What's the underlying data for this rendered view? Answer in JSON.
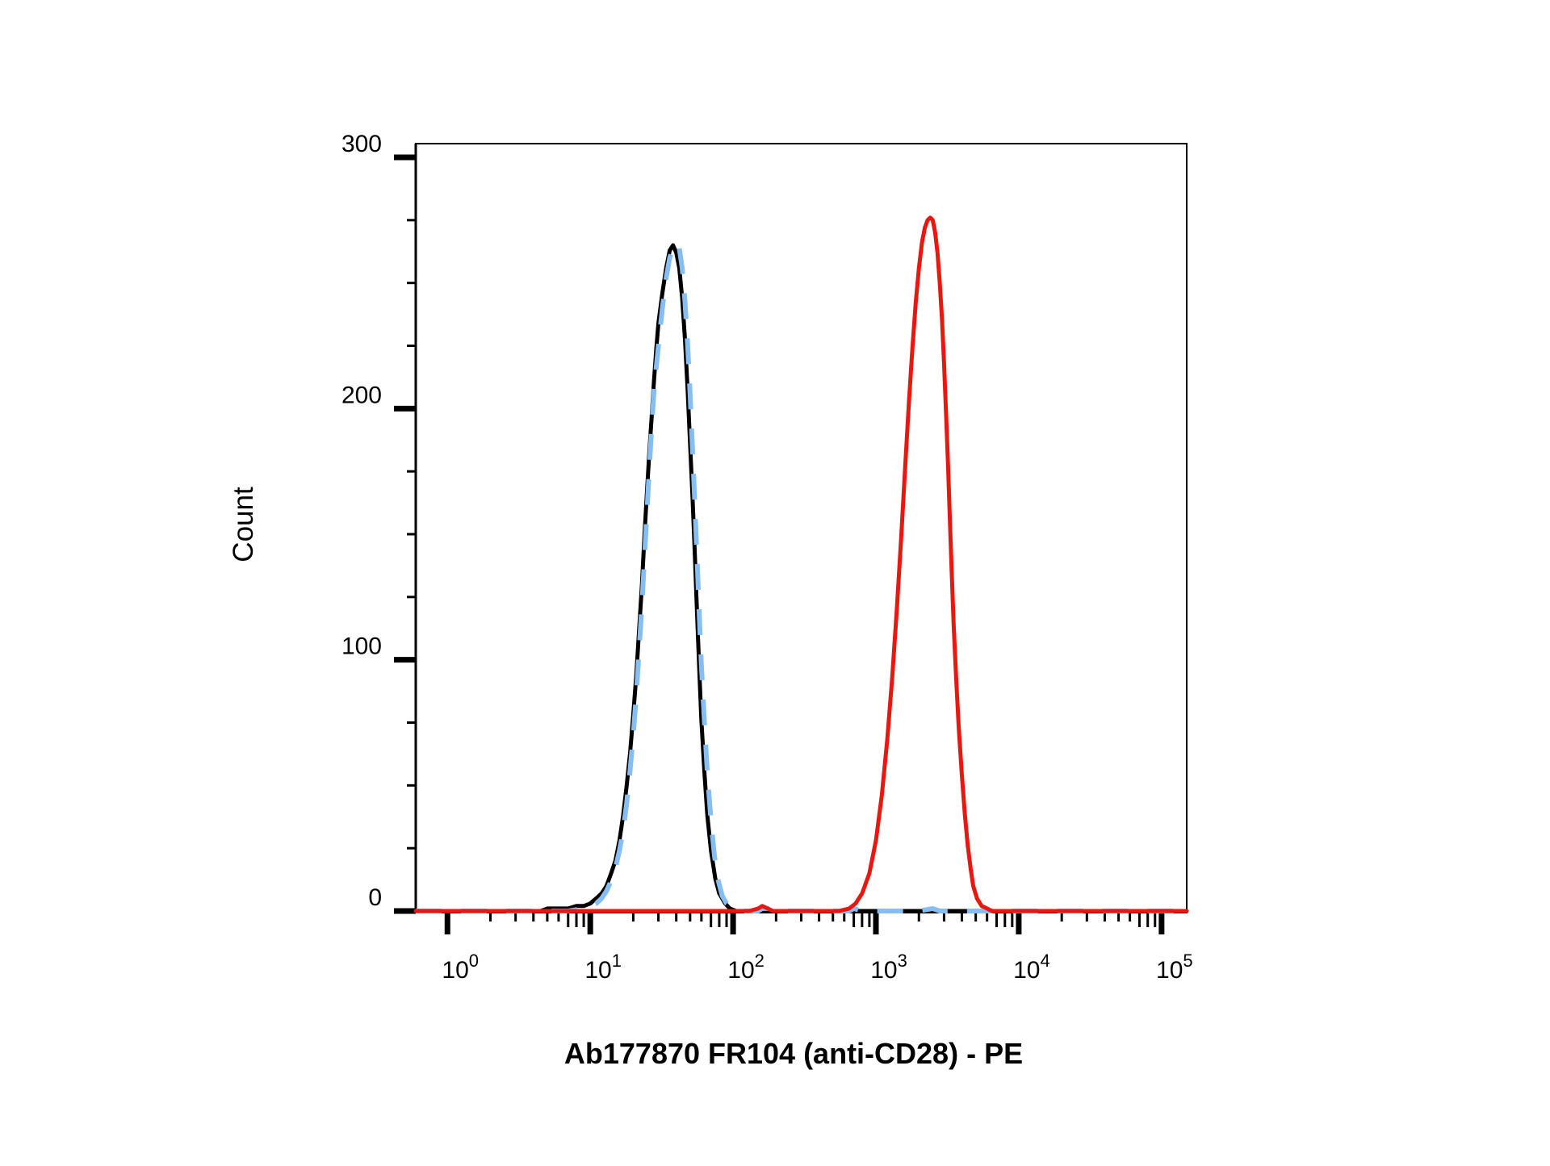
{
  "chart_data": {
    "type": "line",
    "title": "",
    "xlabel": "Ab177870 FR104 (anti-CD28) - PE",
    "ylabel": "Count",
    "x_scale": "log",
    "xlim": [
      0.6,
      150000
    ],
    "ylim": [
      0,
      300
    ],
    "x_ticks": [
      {
        "value": 1,
        "base": "10",
        "exp": "0"
      },
      {
        "value": 10,
        "base": "10",
        "exp": "1"
      },
      {
        "value": 100,
        "base": "10",
        "exp": "2"
      },
      {
        "value": 1000,
        "base": "10",
        "exp": "3"
      },
      {
        "value": 10000,
        "base": "10",
        "exp": "4"
      },
      {
        "value": 100000,
        "base": "10",
        "exp": "5"
      }
    ],
    "y_ticks": [
      {
        "value": 0,
        "label": "0"
      },
      {
        "value": 100,
        "label": "100"
      },
      {
        "value": 200,
        "label": "200"
      },
      {
        "value": 300,
        "label": "300"
      }
    ],
    "grid": false,
    "legend": "none",
    "series": [
      {
        "color": "#000000",
        "style": "solid",
        "points": [
          [
            0.6,
            0
          ],
          [
            3.5,
            0
          ],
          [
            4.5,
            0
          ],
          [
            5,
            1
          ],
          [
            6,
            1
          ],
          [
            7,
            1
          ],
          [
            8,
            2
          ],
          [
            9,
            2
          ],
          [
            10,
            3
          ],
          [
            11,
            5
          ],
          [
            12,
            7
          ],
          [
            13,
            10
          ],
          [
            14,
            15
          ],
          [
            15,
            20
          ],
          [
            16,
            28
          ],
          [
            17,
            38
          ],
          [
            18,
            50
          ],
          [
            19,
            63
          ],
          [
            20,
            78
          ],
          [
            21,
            94
          ],
          [
            22,
            112
          ],
          [
            23,
            130
          ],
          [
            24,
            150
          ],
          [
            25,
            168
          ],
          [
            26,
            184
          ],
          [
            27,
            198
          ],
          [
            28,
            212
          ],
          [
            29,
            224
          ],
          [
            30,
            234
          ],
          [
            32,
            246
          ],
          [
            34,
            256
          ],
          [
            36,
            263
          ],
          [
            38,
            265
          ],
          [
            40,
            262
          ],
          [
            42,
            256
          ],
          [
            44,
            244
          ],
          [
            46,
            228
          ],
          [
            48,
            208
          ],
          [
            50,
            186
          ],
          [
            52,
            165
          ],
          [
            54,
            142
          ],
          [
            56,
            118
          ],
          [
            58,
            96
          ],
          [
            60,
            76
          ],
          [
            63,
            55
          ],
          [
            66,
            38
          ],
          [
            70,
            24
          ],
          [
            75,
            13
          ],
          [
            80,
            7
          ],
          [
            88,
            3
          ],
          [
            95,
            1
          ],
          [
            105,
            0
          ],
          [
            150000,
            0
          ]
        ]
      },
      {
        "color": "#87BEF2",
        "style": "dashed",
        "points": [
          [
            0.6,
            0
          ],
          [
            3,
            0
          ],
          [
            5,
            0
          ],
          [
            7,
            0
          ],
          [
            9,
            1
          ],
          [
            11,
            3
          ],
          [
            12,
            5
          ],
          [
            13,
            8
          ],
          [
            14,
            12
          ],
          [
            15,
            17
          ],
          [
            16,
            24
          ],
          [
            17,
            32
          ],
          [
            18,
            43
          ],
          [
            19,
            56
          ],
          [
            20,
            70
          ],
          [
            21,
            86
          ],
          [
            22,
            104
          ],
          [
            23,
            122
          ],
          [
            24,
            141
          ],
          [
            25,
            160
          ],
          [
            26,
            178
          ],
          [
            27,
            194
          ],
          [
            28,
            208
          ],
          [
            30,
            225
          ],
          [
            32,
            240
          ],
          [
            34,
            252
          ],
          [
            36,
            260
          ],
          [
            38,
            264
          ],
          [
            40,
            266
          ],
          [
            42,
            264
          ],
          [
            44,
            256
          ],
          [
            46,
            243
          ],
          [
            48,
            226
          ],
          [
            50,
            206
          ],
          [
            52,
            184
          ],
          [
            54,
            162
          ],
          [
            56,
            140
          ],
          [
            58,
            118
          ],
          [
            60,
            98
          ],
          [
            63,
            75
          ],
          [
            66,
            55
          ],
          [
            70,
            36
          ],
          [
            74,
            22
          ],
          [
            78,
            13
          ],
          [
            84,
            6
          ],
          [
            90,
            3
          ],
          [
            100,
            1
          ],
          [
            110,
            0
          ],
          [
            150,
            0
          ],
          [
            160,
            1
          ],
          [
            180,
            1
          ],
          [
            195,
            0
          ],
          [
            650,
            0
          ],
          [
            700,
            1
          ],
          [
            800,
            0
          ],
          [
            2000,
            0
          ],
          [
            2500,
            1
          ],
          [
            2800,
            0
          ],
          [
            150000,
            0
          ]
        ]
      },
      {
        "color": "#E8170F",
        "style": "solid",
        "points": [
          [
            0.6,
            0
          ],
          [
            130,
            0
          ],
          [
            150,
            1
          ],
          [
            160,
            2
          ],
          [
            175,
            1
          ],
          [
            190,
            0
          ],
          [
            550,
            0
          ],
          [
            650,
            1
          ],
          [
            720,
            3
          ],
          [
            800,
            7
          ],
          [
            900,
            15
          ],
          [
            1000,
            28
          ],
          [
            1100,
            46
          ],
          [
            1200,
            68
          ],
          [
            1300,
            93
          ],
          [
            1400,
            120
          ],
          [
            1500,
            148
          ],
          [
            1600,
            176
          ],
          [
            1700,
            202
          ],
          [
            1800,
            224
          ],
          [
            1900,
            242
          ],
          [
            2000,
            256
          ],
          [
            2100,
            266
          ],
          [
            2200,
            272
          ],
          [
            2300,
            275
          ],
          [
            2400,
            276
          ],
          [
            2500,
            275
          ],
          [
            2600,
            270
          ],
          [
            2700,
            262
          ],
          [
            2800,
            250
          ],
          [
            2900,
            236
          ],
          [
            3000,
            218
          ],
          [
            3100,
            198
          ],
          [
            3200,
            177
          ],
          [
            3300,
            155
          ],
          [
            3400,
            134
          ],
          [
            3500,
            114
          ],
          [
            3650,
            92
          ],
          [
            3800,
            73
          ],
          [
            4000,
            54
          ],
          [
            4200,
            38
          ],
          [
            4400,
            26
          ],
          [
            4600,
            17
          ],
          [
            4800,
            10
          ],
          [
            5100,
            5
          ],
          [
            5500,
            2
          ],
          [
            6000,
            1
          ],
          [
            6500,
            0
          ],
          [
            150000,
            0
          ]
        ]
      }
    ]
  }
}
